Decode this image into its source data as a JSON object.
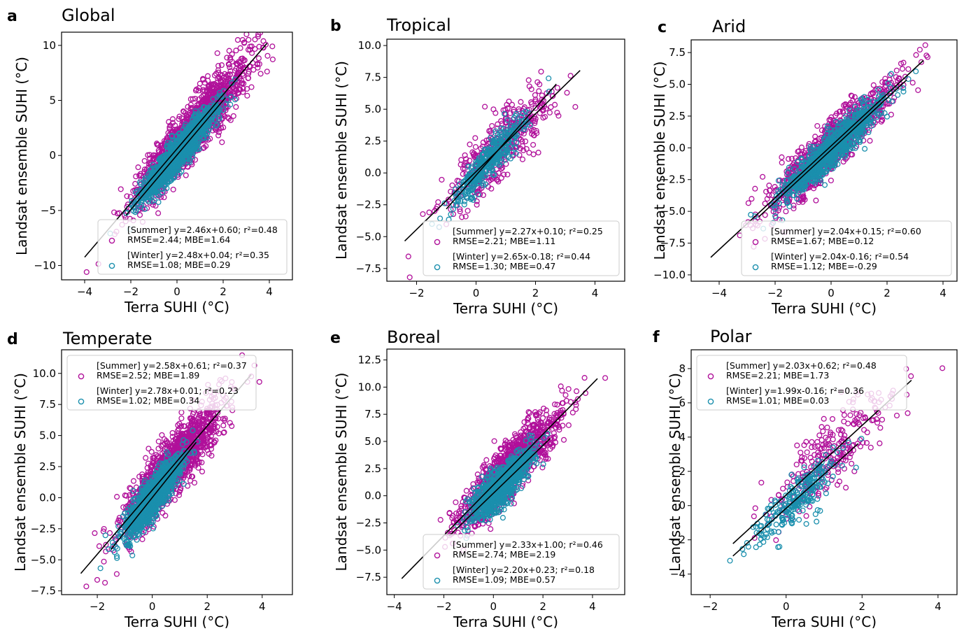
{
  "figure": {
    "colors": {
      "summer": "#b0109a",
      "winter": "#1a8fad",
      "fit": "#000000",
      "axes": "#000000"
    }
  },
  "chart_data": [
    {
      "type": "scatter",
      "panel_letter": "a",
      "title": "Global",
      "xlabel": "Terra SUHI (°C)",
      "ylabel": "Landsat ensemble SUHI (°C)",
      "xlim": [
        -5,
        5
      ],
      "ylim": [
        -11.3,
        11.2
      ],
      "xticks": [
        -4,
        -2,
        0,
        2,
        4
      ],
      "yticks": [
        -10,
        -5,
        0,
        5,
        10
      ],
      "xtick_labels": [
        "−4",
        "−2",
        "0",
        "2",
        "4"
      ],
      "ytick_labels": [
        "−10",
        "−5",
        "0",
        "5",
        "10"
      ],
      "legend_position": "lower-right",
      "series": [
        {
          "name": "Summer",
          "color": "#b0109a",
          "fit_text": "[Summer] y=2.46x+0.60; r²=0.48",
          "stats_text": "RMSE=2.44; MBE=1.64",
          "slope": 2.46,
          "intercept": 0.6,
          "fit_x": [
            -4.0,
            3.9
          ],
          "cloud": {
            "x_mean": 0.6,
            "x_sd": 1.2,
            "noise_sd": 1.7
          }
        },
        {
          "name": "Winter",
          "color": "#1a8fad",
          "fit_text": "[Winter] y=2.48x+0.04; r²=0.35",
          "stats_text": "RMSE=1.08; MBE=0.29",
          "slope": 2.48,
          "intercept": 0.04,
          "fit_x": [
            -2.2,
            2.1
          ],
          "cloud": {
            "x_mean": 0.0,
            "x_sd": 0.8,
            "noise_sd": 1.0
          }
        }
      ]
    },
    {
      "type": "scatter",
      "panel_letter": "b",
      "title": "Tropical",
      "xlabel": "Terra SUHI (°C)",
      "ylabel": "Landsat ensemble SUHI (°C)",
      "xlim": [
        -3,
        5
      ],
      "ylim": [
        -8.5,
        10.5
      ],
      "xticks": [
        -2,
        0,
        2,
        4
      ],
      "yticks": [
        -7.5,
        -5.0,
        -2.5,
        0.0,
        2.5,
        5.0,
        7.5,
        10.0
      ],
      "xtick_labels": [
        "−2",
        "0",
        "2",
        "4"
      ],
      "ytick_labels": [
        "−7.5",
        "−5.0",
        "−2.5",
        "0.0",
        "2.5",
        "5.0",
        "7.5",
        "10.0"
      ],
      "legend_position": "lower-right",
      "series": [
        {
          "name": "Summer",
          "color": "#b0109a",
          "fit_text": "[Summer] y=2.27x+0.10; r²=0.25",
          "stats_text": "RMSE=2.21; MBE=1.11",
          "slope": 2.27,
          "intercept": 0.1,
          "fit_x": [
            -2.4,
            3.5
          ],
          "cloud": {
            "x_mean": 0.7,
            "x_sd": 0.9,
            "noise_sd": 1.6
          }
        },
        {
          "name": "Winter",
          "color": "#1a8fad",
          "fit_text": "[Winter] y=2.65x-0.18; r²=0.44",
          "stats_text": "RMSE=1.30; MBE=0.47",
          "slope": 2.65,
          "intercept": -0.18,
          "fit_x": [
            -1.0,
            2.7
          ],
          "cloud": {
            "x_mean": 0.4,
            "x_sd": 0.6,
            "noise_sd": 0.9
          }
        }
      ]
    },
    {
      "type": "scatter",
      "panel_letter": "c",
      "title": "Arid",
      "xlabel": "Terra SUHI (°C)",
      "ylabel": "Landsat ensemble SUHI (°C)",
      "xlim": [
        -5,
        4.5
      ],
      "ylim": [
        -10.5,
        8.5
      ],
      "xticks": [
        -4,
        -2,
        0,
        2,
        4
      ],
      "yticks": [
        -10.0,
        -7.5,
        -5.0,
        -2.5,
        0.0,
        2.5,
        5.0,
        7.5
      ],
      "xtick_labels": [
        "−4",
        "−2",
        "0",
        "2",
        "4"
      ],
      "ytick_labels": [
        "−10.0",
        "−7.5",
        "−5.0",
        "−2.5",
        "0.0",
        "2.5",
        "5.0",
        "7.5"
      ],
      "legend_position": "lower-right",
      "series": [
        {
          "name": "Summer",
          "color": "#b0109a",
          "fit_text": "[Summer] y=2.04x+0.15; r²=0.60",
          "stats_text": "RMSE=1.67; MBE=0.12",
          "slope": 2.04,
          "intercept": 0.15,
          "fit_x": [
            -4.3,
            3.3
          ],
          "cloud": {
            "x_mean": 0.0,
            "x_sd": 1.1,
            "noise_sd": 1.3
          }
        },
        {
          "name": "Winter",
          "color": "#1a8fad",
          "fit_text": "[Winter] y=2.04x-0.16; r²=0.54",
          "stats_text": "RMSE=1.12; MBE=-0.29",
          "slope": 2.04,
          "intercept": -0.16,
          "fit_x": [
            -2.6,
            2.7
          ],
          "cloud": {
            "x_mean": 0.0,
            "x_sd": 0.9,
            "noise_sd": 0.9
          }
        }
      ]
    },
    {
      "type": "scatter",
      "panel_letter": "d",
      "title": "Temperate",
      "xlabel": "Terra SUHI (°C)",
      "ylabel": "Landsat ensemble SUHI (°C)",
      "xlim": [
        -3.3,
        5.1
      ],
      "ylim": [
        -7.8,
        11.9
      ],
      "xticks": [
        -2,
        0,
        2,
        4
      ],
      "yticks": [
        -7.5,
        -5.0,
        -2.5,
        0.0,
        2.5,
        5.0,
        7.5,
        10.0
      ],
      "xtick_labels": [
        "−2",
        "0",
        "2",
        "4"
      ],
      "ytick_labels": [
        "−7.5",
        "−5.0",
        "−2.5",
        "0.0",
        "2.5",
        "5.0",
        "7.5",
        "10.0"
      ],
      "legend_position": "upper-left",
      "series": [
        {
          "name": "Summer",
          "color": "#b0109a",
          "fit_text": "[Summer] y=2.58x+0.61; r²=0.37",
          "stats_text": "RMSE=2.52; MBE=1.89",
          "slope": 2.58,
          "intercept": 0.61,
          "fit_x": [
            -2.6,
            3.6
          ],
          "cloud": {
            "x_mean": 0.7,
            "x_sd": 0.9,
            "noise_sd": 1.6
          }
        },
        {
          "name": "Winter",
          "color": "#1a8fad",
          "fit_text": "[Winter] y=2.78x+0.01; r²=0.23",
          "stats_text": "RMSE=1.02; MBE=0.34",
          "slope": 2.78,
          "intercept": 0.01,
          "fit_x": [
            -1.5,
            1.6
          ],
          "cloud": {
            "x_mean": 0.0,
            "x_sd": 0.5,
            "noise_sd": 1.0
          }
        }
      ]
    },
    {
      "type": "scatter",
      "panel_letter": "e",
      "title": "Boreal",
      "xlabel": "Terra SUHI (°C)",
      "ylabel": "Landsat ensemble SUHI (°C)",
      "xlim": [
        -4.3,
        5.3
      ],
      "ylim": [
        -9.1,
        13.5
      ],
      "xticks": [
        -4,
        -2,
        0,
        2,
        4
      ],
      "yticks": [
        -7.5,
        -5.0,
        -2.5,
        0.0,
        2.5,
        5.0,
        7.5,
        10.0,
        12.5
      ],
      "xtick_labels": [
        "−4",
        "−2",
        "0",
        "2",
        "4"
      ],
      "ytick_labels": [
        "−7.5",
        "−5.0",
        "−2.5",
        "0.0",
        "2.5",
        "5.0",
        "7.5",
        "10.0",
        "12.5"
      ],
      "legend_position": "lower-right",
      "series": [
        {
          "name": "Summer",
          "color": "#b0109a",
          "fit_text": "[Summer] y=2.33x+1.00; r²=0.46",
          "stats_text": "RMSE=2.74; MBE=2.19",
          "slope": 2.33,
          "intercept": 1.0,
          "fit_x": [
            -3.7,
            4.2
          ],
          "cloud": {
            "x_mean": 0.6,
            "x_sd": 1.0,
            "noise_sd": 1.7
          }
        },
        {
          "name": "Winter",
          "color": "#1a8fad",
          "fit_text": "[Winter] y=2.20x+0.23; r²=0.18",
          "stats_text": "RMSE=1.09; MBE=0.57",
          "slope": 2.2,
          "intercept": 0.23,
          "fit_x": [
            -1.8,
            2.3
          ],
          "cloud": {
            "x_mean": 0.3,
            "x_sd": 0.6,
            "noise_sd": 1.2
          }
        }
      ]
    },
    {
      "type": "scatter",
      "panel_letter": "f",
      "title": "Polar",
      "xlabel": "Terra SUHI (°C)",
      "ylabel": "Landsat ensemble SUHI (°C)",
      "xlim": [
        -2.5,
        4.5
      ],
      "ylim": [
        -5.2,
        9.1
      ],
      "xticks": [
        -2,
        0,
        2,
        4
      ],
      "yticks": [
        -4,
        -2,
        0,
        2,
        4,
        6,
        8
      ],
      "xtick_labels": [
        "−2",
        "0",
        "2",
        "4"
      ],
      "ytick_labels": [
        "−4",
        "−2",
        "0",
        "2",
        "4",
        "6",
        "8"
      ],
      "legend_position": "upper-left",
      "series": [
        {
          "name": "Summer",
          "color": "#b0109a",
          "fit_text": "[Summer] y=2.03x+0.62; r²=0.48",
          "stats_text": "RMSE=2.21; MBE=1.73",
          "slope": 2.03,
          "intercept": 0.62,
          "fit_x": [
            -1.4,
            3.3
          ],
          "cloud": {
            "x_mean": 1.2,
            "x_sd": 0.9,
            "noise_sd": 1.4
          }
        },
        {
          "name": "Winter",
          "color": "#1a8fad",
          "fit_text": "[Winter] y=1.99x-0.16; r²=0.36",
          "stats_text": "RMSE=1.01; MBE=0.03",
          "slope": 1.99,
          "intercept": -0.16,
          "fit_x": [
            -1.4,
            1.9
          ],
          "cloud": {
            "x_mean": 0.3,
            "x_sd": 0.6,
            "noise_sd": 0.9
          }
        }
      ]
    }
  ]
}
